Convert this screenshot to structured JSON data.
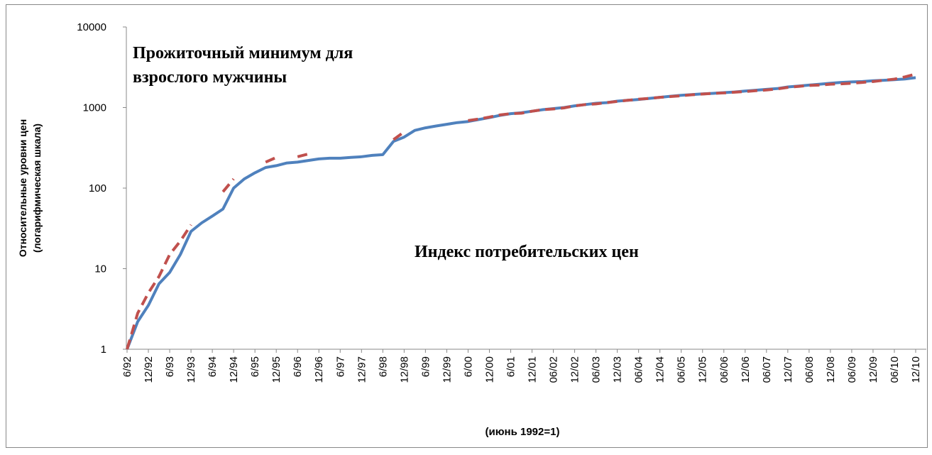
{
  "chart_data": {
    "type": "line",
    "log_scale_y": true,
    "grid": false,
    "y_label": [
      "Относительные уровни цен",
      "(логарифмическая шкала)"
    ],
    "x_label": "(июнь 1992=1)",
    "annotations": [
      "Прожиточный минимум для",
      "взрослого мужчины",
      "Индекс потребительских цен"
    ],
    "categories": [
      "6/92",
      null,
      "12/92",
      null,
      "6/93",
      null,
      "12/93",
      null,
      "6/94",
      null,
      "12/94",
      null,
      "6/95",
      null,
      "12/95",
      null,
      "6/96",
      null,
      "12/96",
      null,
      "6/97",
      null,
      "12/97",
      null,
      "6/98",
      null,
      "12/98",
      null,
      "6/99",
      null,
      "12/99",
      null,
      "6/00",
      null,
      "12/00",
      null,
      "6/01",
      null,
      "12/01",
      null,
      "06/02",
      null,
      "12/02",
      null,
      "06/03",
      null,
      "12/03",
      null,
      "06/04",
      null,
      "12/04",
      null,
      "06/05",
      null,
      "12/05",
      null,
      "06/06",
      null,
      "12/06",
      null,
      "06/07",
      null,
      "12/07",
      null,
      "06/08",
      null,
      "12/08",
      null,
      "06/09",
      null,
      "12/09",
      null,
      "06/10",
      null,
      "12/10"
    ],
    "series": [
      {
        "color": "#c0504d",
        "dashed": true,
        "values": [
          1,
          2.8,
          5,
          8,
          15,
          22,
          35,
          null,
          null,
          90,
          130,
          null,
          null,
          210,
          240,
          null,
          245,
          265,
          null,
          null,
          null,
          null,
          null,
          null,
          null,
          400,
          500,
          null,
          null,
          null,
          null,
          null,
          690,
          720,
          760,
          810,
          840,
          850,
          900,
          940,
          960,
          990,
          1050,
          1090,
          1110,
          1150,
          1190,
          1230,
          1270,
          1300,
          1340,
          1370,
          1400,
          1440,
          1470,
          1500,
          1520,
          1550,
          1580,
          1620,
          1650,
          1700,
          1780,
          1830,
          1880,
          1900,
          1950,
          1970,
          2000,
          2050,
          2100,
          2180,
          2250,
          2400,
          2600
        ]
      },
      {
        "color": "#4f81bd",
        "dashed": false,
        "values": [
          1,
          2.2,
          3.5,
          6.5,
          9,
          15,
          29,
          37,
          45,
          55,
          100,
          130,
          155,
          180,
          190,
          205,
          210,
          220,
          230,
          235,
          235,
          240,
          245,
          255,
          260,
          380,
          430,
          520,
          560,
          590,
          620,
          650,
          670,
          710,
          750,
          800,
          840,
          860,
          900,
          940,
          970,
          1000,
          1050,
          1090,
          1130,
          1150,
          1200,
          1230,
          1260,
          1300,
          1340,
          1380,
          1420,
          1450,
          1480,
          1500,
          1530,
          1560,
          1600,
          1640,
          1680,
          1720,
          1800,
          1850,
          1900,
          1950,
          2000,
          2050,
          2080,
          2100,
          2150,
          2180,
          2220,
          2260,
          2350
        ]
      }
    ],
    "ylim": [
      1,
      10000
    ],
    "yticks": [
      1,
      10,
      100,
      1000,
      10000
    ]
  }
}
